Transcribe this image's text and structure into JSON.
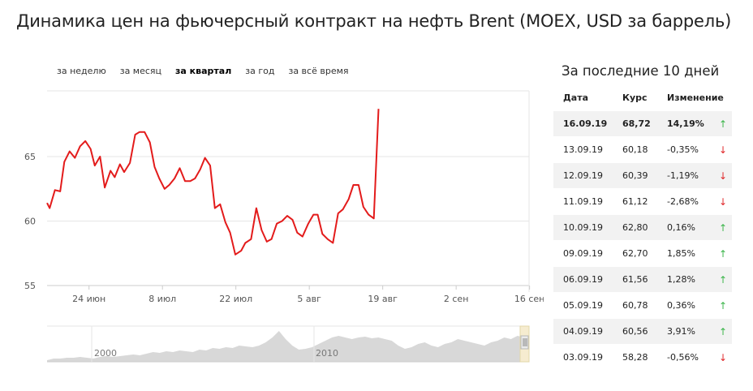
{
  "title": "Динамика цен на фьючерсный контракт на нефть Brent (MOEX, USD за баррель)",
  "tabs": [
    {
      "label": "за неделю",
      "active": false
    },
    {
      "label": "за месяц",
      "active": false
    },
    {
      "label": "за квартал",
      "active": true
    },
    {
      "label": "за год",
      "active": false
    },
    {
      "label": "за всё время",
      "active": false
    }
  ],
  "chart_data": {
    "type": "line",
    "title": "",
    "xlabel": "",
    "ylabel": "",
    "ylim": [
      55,
      69
    ],
    "yticks": [
      "55",
      "60",
      "65"
    ],
    "xticks": [
      {
        "label": "24 июн",
        "x": 8
      },
      {
        "label": "8 июл",
        "x": 22
      },
      {
        "label": "22 июл",
        "x": 36
      },
      {
        "label": "5 авг",
        "x": 50
      },
      {
        "label": "19 авг",
        "x": 64
      },
      {
        "label": "2 сен",
        "x": 78
      },
      {
        "label": "16 сен",
        "x": 92
      }
    ],
    "grid": true,
    "line_color": "#e31b1b",
    "series": [
      {
        "x": [
          0,
          0.5,
          1.5,
          2.5,
          3.3,
          4.3,
          5.3,
          6.3,
          7.3,
          8.3,
          9.1,
          10.1,
          11.0,
          12.1,
          12.9,
          13.9,
          14.7,
          15.8,
          16.8,
          17.6,
          18.6,
          19.6,
          20.5,
          21.4,
          22.4,
          23.3,
          24.3,
          25.3,
          26.3,
          27.3,
          28.2,
          29.2,
          30.1,
          31.1,
          32.0,
          33.0,
          34.0,
          34.9,
          35.9,
          37.0,
          37.8,
          38.9,
          39.9,
          40.9,
          41.9,
          42.8,
          43.8,
          44.8,
          45.8,
          46.8,
          47.7,
          48.7,
          49.8,
          50.8,
          51.6,
          52.5,
          53.5,
          54.5,
          55.5,
          56.4,
          57.5,
          58.4,
          59.4,
          60.3,
          61.3,
          62.3,
          63.2,
          64.1,
          65.2,
          66.2,
          67.0,
          68.0,
          69.1,
          70.0,
          71.0,
          72.0,
          72.9,
          73.8,
          74.9,
          75.9,
          76.8,
          77.8,
          78.8,
          79.7,
          80.6,
          81.6,
          82.6,
          83.6,
          84.5,
          85.5,
          86.5,
          87.4,
          88.2,
          88.9
        ],
        "values": [
          61.4,
          61.0,
          62.4,
          62.3,
          64.6,
          65.4,
          64.9,
          65.8,
          66.2,
          65.6,
          64.3,
          65.0,
          62.6,
          63.9,
          63.4,
          64.4,
          63.8,
          64.5,
          66.7,
          66.9,
          66.9,
          66.1,
          64.2,
          63.3,
          62.5,
          62.8,
          63.3,
          64.1,
          63.1,
          63.1,
          63.3,
          64.0,
          64.9,
          64.3,
          61.0,
          61.3,
          59.9,
          59.1,
          57.4,
          57.7,
          58.3,
          58.6,
          61.0,
          59.3,
          58.4,
          58.6,
          59.8,
          60.0,
          60.4,
          60.1,
          59.1,
          58.8,
          59.8,
          60.5,
          60.5,
          59.0,
          58.6,
          58.3,
          60.6,
          60.9,
          61.7,
          62.8,
          62.8,
          61.1,
          60.5,
          60.2,
          68.7,
          68.7,
          68.7,
          68.7,
          68.7,
          68.7,
          68.7,
          68.7,
          68.7,
          68.7,
          68.7,
          68.7,
          68.7,
          68.7,
          68.7,
          68.7,
          68.7,
          68.7,
          68.7,
          68.7,
          68.7,
          68.7,
          68.7,
          68.7,
          68.7,
          68.7,
          68.7,
          68.7
        ]
      }
    ],
    "navigator": {
      "labels": [
        "2000",
        "2010"
      ],
      "color": "#d8d8d8"
    }
  },
  "side": {
    "title": "За последние 10 дней",
    "headers": {
      "date": "Дата",
      "rate": "Курс",
      "change": "Изменение"
    },
    "rows": [
      {
        "date": "16.09.19",
        "rate": "68,72",
        "change": "14,19%",
        "dir": "up",
        "arrow": "↑"
      },
      {
        "date": "13.09.19",
        "rate": "60,18",
        "change": "-0,35%",
        "dir": "down",
        "arrow": "↓"
      },
      {
        "date": "12.09.19",
        "rate": "60,39",
        "change": "-1,19%",
        "dir": "down",
        "arrow": "↓"
      },
      {
        "date": "11.09.19",
        "rate": "61,12",
        "change": "-2,68%",
        "dir": "down",
        "arrow": "↓"
      },
      {
        "date": "10.09.19",
        "rate": "62,80",
        "change": "0,16%",
        "dir": "up",
        "arrow": "↑"
      },
      {
        "date": "09.09.19",
        "rate": "62,70",
        "change": "1,85%",
        "dir": "up",
        "arrow": "↑"
      },
      {
        "date": "06.09.19",
        "rate": "61,56",
        "change": "1,28%",
        "dir": "up",
        "arrow": "↑"
      },
      {
        "date": "05.09.19",
        "rate": "60,78",
        "change": "0,36%",
        "dir": "up",
        "arrow": "↑"
      },
      {
        "date": "04.09.19",
        "rate": "60,56",
        "change": "3,91%",
        "dir": "up",
        "arrow": "↑"
      },
      {
        "date": "03.09.19",
        "rate": "58,28",
        "change": "-0,56%",
        "dir": "down",
        "arrow": "↓"
      }
    ]
  }
}
